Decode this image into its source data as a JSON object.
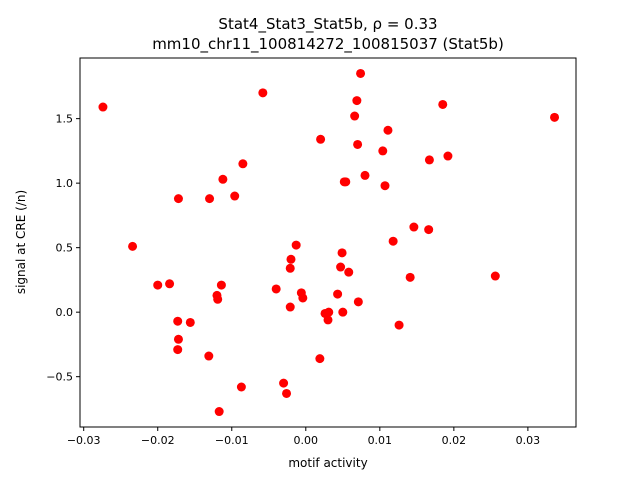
{
  "chart_data": {
    "type": "scatter",
    "title_line1": "Stat4_Stat3_Stat5b, ρ = 0.33",
    "title_line2": "mm10_chr11_100814272_100815037 (Stat5b)",
    "xlabel": "motif activity",
    "ylabel": "signal at CRE (/n)",
    "xlim": [
      -0.0305,
      0.0365
    ],
    "ylim": [
      -0.89,
      1.97
    ],
    "xticks": [
      -0.03,
      -0.02,
      -0.01,
      0.0,
      0.01,
      0.02,
      0.03
    ],
    "xtick_labels": [
      "−0.03",
      "−0.02",
      "−0.01",
      "0.00",
      "0.01",
      "0.02",
      "0.03"
    ],
    "yticks": [
      -0.5,
      0.0,
      0.5,
      1.0,
      1.5
    ],
    "ytick_labels": [
      "−0.5",
      "0.0",
      "0.5",
      "1.0",
      "1.5"
    ],
    "grid": false,
    "marker_color": "#ff0000",
    "points": [
      [
        -0.0274,
        1.59
      ],
      [
        -0.0234,
        0.51
      ],
      [
        -0.02,
        0.21
      ],
      [
        -0.0184,
        0.22
      ],
      [
        -0.0173,
        -0.07
      ],
      [
        -0.0172,
        -0.21
      ],
      [
        -0.0173,
        -0.29
      ],
      [
        -0.0172,
        0.88
      ],
      [
        -0.0156,
        -0.08
      ],
      [
        -0.0131,
        -0.34
      ],
      [
        -0.013,
        0.88
      ],
      [
        -0.012,
        0.13
      ],
      [
        -0.0119,
        0.1
      ],
      [
        -0.0114,
        0.21
      ],
      [
        -0.0112,
        1.03
      ],
      [
        -0.0096,
        0.9
      ],
      [
        -0.0087,
        -0.58
      ],
      [
        -0.0085,
        1.15
      ],
      [
        -0.0117,
        -0.77
      ],
      [
        -0.0058,
        1.7
      ],
      [
        -0.004,
        0.18
      ],
      [
        -0.003,
        -0.55
      ],
      [
        -0.0026,
        -0.63
      ],
      [
        -0.0021,
        0.04
      ],
      [
        -0.0021,
        0.34
      ],
      [
        -0.002,
        0.41
      ],
      [
        -0.0013,
        0.52
      ],
      [
        -0.0006,
        0.15
      ],
      [
        -0.0004,
        0.11
      ],
      [
        0.0019,
        -0.36
      ],
      [
        0.002,
        1.34
      ],
      [
        0.0026,
        -0.01
      ],
      [
        0.003,
        -0.06
      ],
      [
        0.0031,
        0.0
      ],
      [
        0.0043,
        0.14
      ],
      [
        0.0047,
        0.35
      ],
      [
        0.0049,
        0.46
      ],
      [
        0.005,
        0.0
      ],
      [
        0.0052,
        1.01
      ],
      [
        0.0054,
        1.01
      ],
      [
        0.0058,
        0.31
      ],
      [
        0.0066,
        1.52
      ],
      [
        0.0069,
        1.64
      ],
      [
        0.007,
        1.3
      ],
      [
        0.0071,
        0.08
      ],
      [
        0.0074,
        1.85
      ],
      [
        0.008,
        1.06
      ],
      [
        0.0104,
        1.25
      ],
      [
        0.0107,
        0.98
      ],
      [
        0.0111,
        1.41
      ],
      [
        0.0118,
        0.55
      ],
      [
        0.0126,
        -0.1
      ],
      [
        0.0141,
        0.27
      ],
      [
        0.0146,
        0.66
      ],
      [
        0.0166,
        0.64
      ],
      [
        0.0167,
        1.18
      ],
      [
        0.0185,
        1.61
      ],
      [
        0.0192,
        1.21
      ],
      [
        0.0256,
        0.28
      ],
      [
        0.0336,
        1.51
      ]
    ]
  }
}
